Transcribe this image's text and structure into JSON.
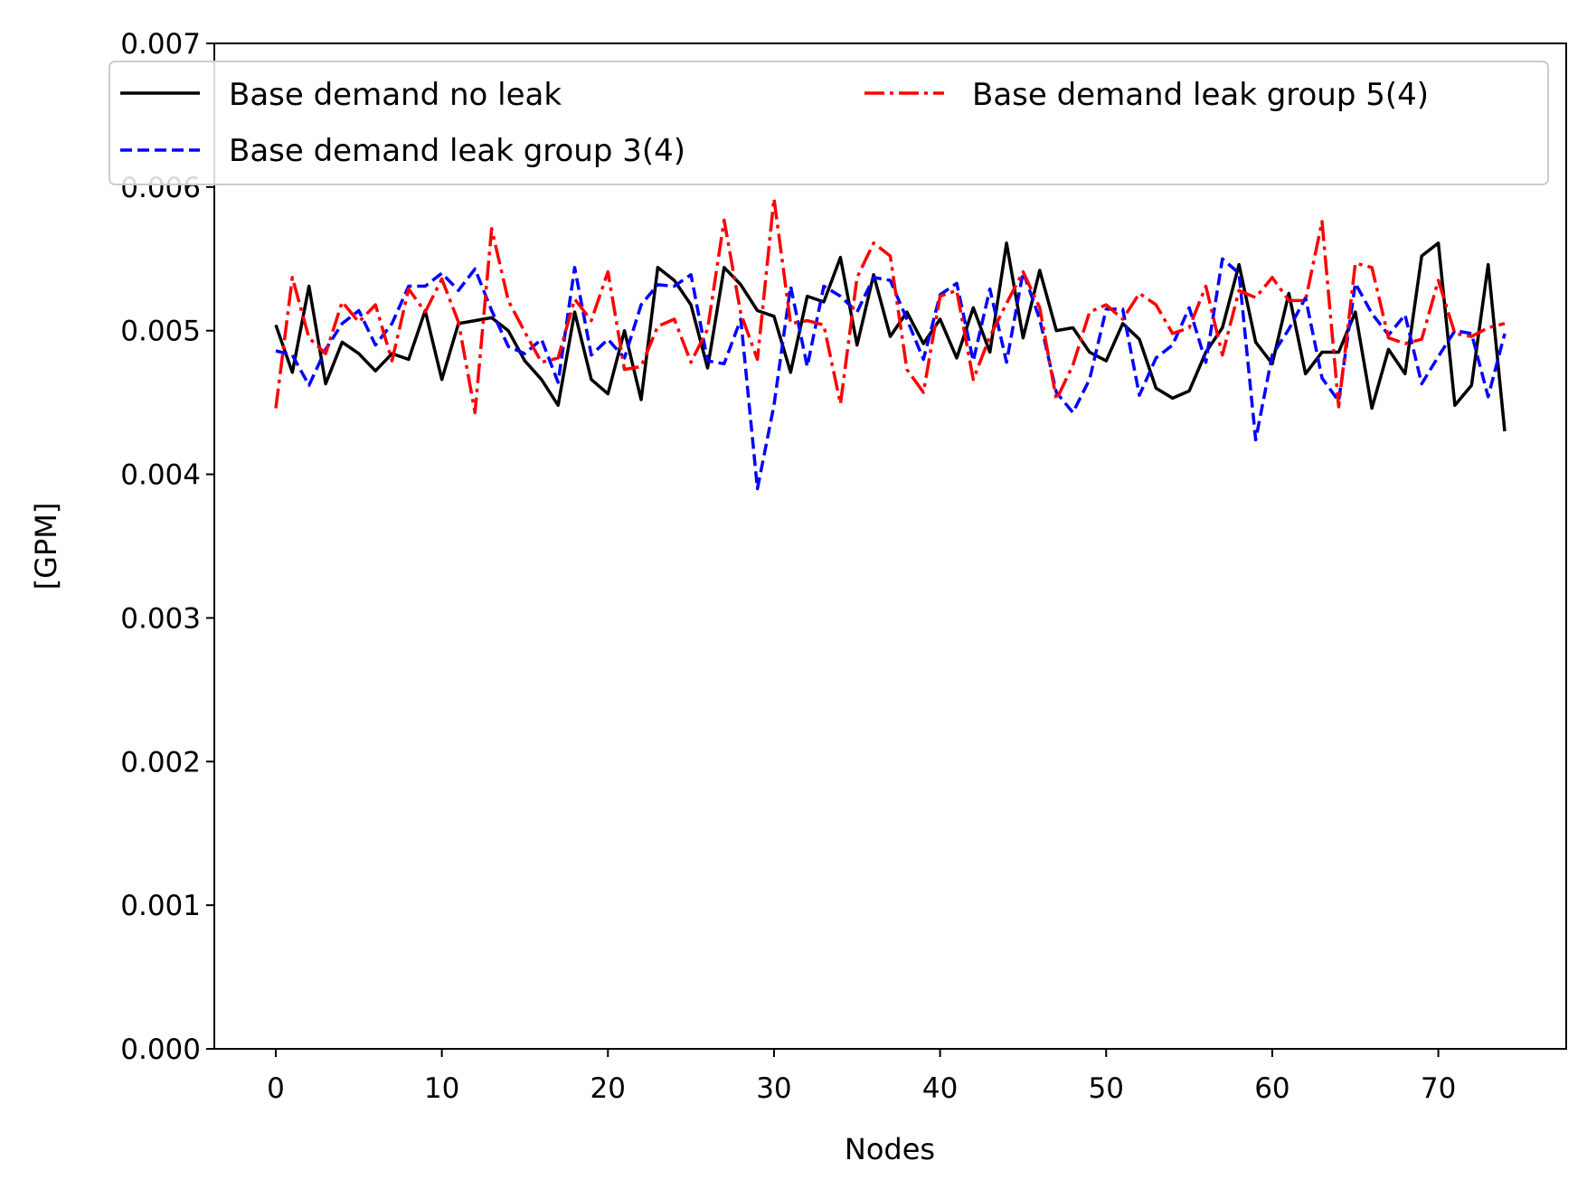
{
  "chart_data": {
    "type": "line",
    "title": "",
    "xlabel": "Nodes",
    "ylabel": "[GPM]",
    "xlim": [
      -3.7,
      77.7
    ],
    "ylim": [
      0,
      0.007
    ],
    "xticks": [
      0,
      10,
      20,
      30,
      40,
      50,
      60,
      70
    ],
    "xtick_labels": [
      "0",
      "10",
      "20",
      "30",
      "40",
      "50",
      "60",
      "70"
    ],
    "yticks": [
      0,
      0.001,
      0.002,
      0.003,
      0.004,
      0.005,
      0.006,
      0.007
    ],
    "ytick_labels": [
      "0.000",
      "0.001",
      "0.002",
      "0.003",
      "0.004",
      "0.005",
      "0.006",
      "0.007"
    ],
    "grid": false,
    "legend_position": "top",
    "series": [
      {
        "name": "Base demand no leak",
        "color": "#000000",
        "dash": "solid",
        "values": [
          0.00504,
          0.00471,
          0.00531,
          0.00463,
          0.00492,
          0.00484,
          0.00472,
          0.00484,
          0.0048,
          0.00514,
          0.00466,
          0.00505,
          0.00507,
          0.00509,
          0.005,
          0.00479,
          0.00466,
          0.00448,
          0.00513,
          0.00466,
          0.00456,
          0.005,
          0.00452,
          0.00544,
          0.00535,
          0.00518,
          0.00474,
          0.00544,
          0.00532,
          0.00514,
          0.0051,
          0.00471,
          0.00524,
          0.0052,
          0.00551,
          0.0049,
          0.00539,
          0.00496,
          0.00513,
          0.00491,
          0.00508,
          0.00481,
          0.00516,
          0.00485,
          0.00561,
          0.00495,
          0.00542,
          0.005,
          0.00502,
          0.00485,
          0.00479,
          0.00505,
          0.00494,
          0.0046,
          0.00453,
          0.00458,
          0.00485,
          0.00502,
          0.00546,
          0.00492,
          0.00477,
          0.00526,
          0.0047,
          0.00485,
          0.00485,
          0.00513,
          0.00446,
          0.00487,
          0.0047,
          0.00552,
          0.00561,
          0.00448,
          0.00462,
          0.00546,
          0.0043
        ]
      },
      {
        "name": "Base demand leak group 3(4)",
        "color": "#0000ff",
        "dash": "dashed",
        "values": [
          0.00486,
          0.00483,
          0.00462,
          0.00487,
          0.00505,
          0.00514,
          0.0049,
          0.00505,
          0.00531,
          0.00531,
          0.0054,
          0.00528,
          0.00543,
          0.00514,
          0.00489,
          0.00484,
          0.00494,
          0.00464,
          0.00544,
          0.00483,
          0.00494,
          0.00481,
          0.00518,
          0.00532,
          0.00531,
          0.00539,
          0.00479,
          0.00477,
          0.00508,
          0.0039,
          0.00448,
          0.00531,
          0.00475,
          0.00531,
          0.00524,
          0.00513,
          0.00537,
          0.00535,
          0.00508,
          0.0048,
          0.00525,
          0.00533,
          0.00479,
          0.00529,
          0.00478,
          0.00541,
          0.00508,
          0.00457,
          0.00443,
          0.00466,
          0.00515,
          0.00515,
          0.00455,
          0.00481,
          0.0049,
          0.00516,
          0.00478,
          0.0055,
          0.0054,
          0.00424,
          0.00483,
          0.00501,
          0.00523,
          0.00467,
          0.00451,
          0.00533,
          0.00512,
          0.00497,
          0.00511,
          0.00463,
          0.00482,
          0.005,
          0.00498,
          0.00454,
          0.00498
        ]
      },
      {
        "name": "Base demand leak group 5(4)",
        "color": "#ff0000",
        "dash": "dashdot",
        "values": [
          0.00446,
          0.00537,
          0.00495,
          0.00484,
          0.0052,
          0.00506,
          0.00518,
          0.00479,
          0.00529,
          0.00513,
          0.00536,
          0.00506,
          0.00443,
          0.00571,
          0.00521,
          0.00499,
          0.00478,
          0.00481,
          0.00522,
          0.00507,
          0.00541,
          0.00473,
          0.00475,
          0.00503,
          0.00508,
          0.00478,
          0.00501,
          0.00577,
          0.00512,
          0.0048,
          0.00592,
          0.00505,
          0.00507,
          0.00504,
          0.00449,
          0.00537,
          0.00561,
          0.00552,
          0.00473,
          0.00457,
          0.00524,
          0.00528,
          0.00466,
          0.00496,
          0.00519,
          0.00541,
          0.00516,
          0.00452,
          0.00476,
          0.00513,
          0.00518,
          0.00508,
          0.00526,
          0.00518,
          0.00498,
          0.00502,
          0.00531,
          0.00483,
          0.00528,
          0.00523,
          0.00537,
          0.00521,
          0.00521,
          0.00576,
          0.00447,
          0.00547,
          0.00544,
          0.00495,
          0.00491,
          0.00494,
          0.00535,
          0.00498,
          0.00496,
          0.00502,
          0.00505
        ]
      }
    ]
  }
}
